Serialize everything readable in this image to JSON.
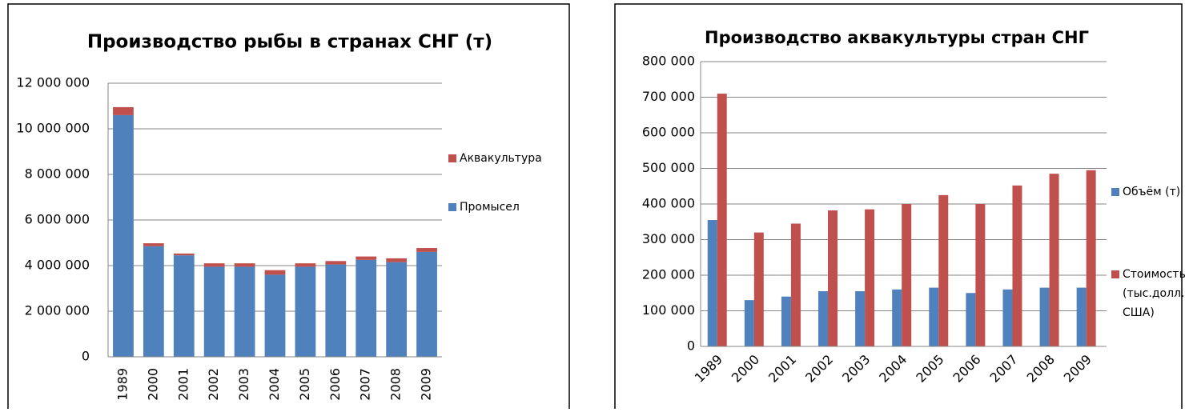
{
  "chart_data": [
    {
      "type": "stacked_bar",
      "title": "Производство рыбы в странах СНГ (т)",
      "categories": [
        "1989",
        "2000",
        "2001",
        "2002",
        "2003",
        "2004",
        "2005",
        "2006",
        "2007",
        "2008",
        "2009"
      ],
      "series": [
        {
          "name": "Промысел",
          "color": "#4f81bd",
          "values": [
            10600000,
            4850000,
            4450000,
            3950000,
            3950000,
            3600000,
            3950000,
            4050000,
            4250000,
            4150000,
            4600000
          ]
        },
        {
          "name": "Аквакультура",
          "color": "#c0504d",
          "values": [
            350000,
            130000,
            80000,
            150000,
            150000,
            200000,
            150000,
            150000,
            150000,
            170000,
            170000
          ]
        }
      ],
      "ylim": [
        0,
        12000000
      ],
      "yticks": [
        0,
        {
          "value": 2000000,
          "label": "2 000 000"
        },
        {
          "value": 4000000,
          "label": "4 000 000"
        },
        {
          "value": 6000000,
          "label": "6 000 000"
        },
        {
          "value": 8000000,
          "label": "8 000 000"
        },
        {
          "value": 10000000,
          "label": "10 000 000"
        },
        {
          "value": 12000000,
          "label": "12 000 000"
        }
      ],
      "grid": true,
      "legend": "right"
    },
    {
      "type": "grouped_bar",
      "title": "Производство аквакультуры стран СНГ",
      "categories": [
        "1989",
        "2000",
        "2001",
        "2002",
        "2003",
        "2004",
        "2005",
        "2006",
        "2007",
        "2008",
        "2009"
      ],
      "series": [
        {
          "name": "Объём (т)",
          "color": "#4f81bd",
          "values": [
            355000,
            130000,
            140000,
            155000,
            155000,
            160000,
            165000,
            150000,
            160000,
            165000,
            165000
          ]
        },
        {
          "name": "Стоимость (тыс.долл. США)",
          "color": "#c0504d",
          "values": [
            710000,
            320000,
            345000,
            382000,
            385000,
            400000,
            425000,
            400000,
            452000,
            485000,
            495000
          ]
        }
      ],
      "ylim": [
        0,
        800000
      ],
      "yticks": [
        0,
        {
          "value": 100000,
          "label": "100 000"
        },
        {
          "value": 200000,
          "label": "200 000"
        },
        {
          "value": 300000,
          "label": "300 000"
        },
        {
          "value": 400000,
          "label": "400 000"
        },
        {
          "value": 500000,
          "label": "500 000"
        },
        {
          "value": 600000,
          "label": "600 000"
        },
        {
          "value": 700000,
          "label": "700 000"
        },
        {
          "value": 800000,
          "label": "800 000"
        }
      ],
      "grid": true,
      "legend": "right"
    }
  ]
}
